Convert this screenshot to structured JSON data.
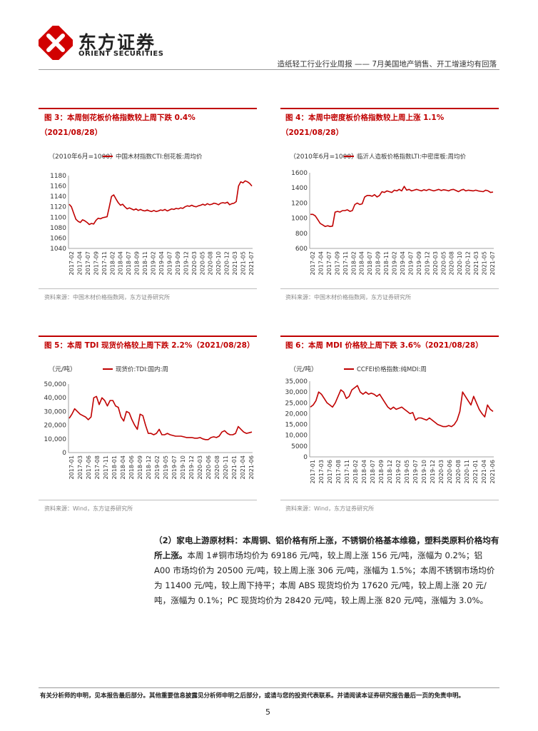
{
  "header": {
    "logo_cn": "东方证券",
    "logo_en": "ORIENT SECURITIES",
    "report_title": "造纸轻工行业行业周报 —— 7月美国地产销售、开工增速均有回落"
  },
  "colors": {
    "accent": "#c00000",
    "series": "#c00000",
    "grid": "#bdbdbd"
  },
  "figures": {
    "fig3": {
      "title": "图 3：本周刨花板价格指数较上周下跌 0.4%",
      "date": "（2021/08/28）",
      "source": "资料来源：中国木材价格指数网，东方证券研究所"
    },
    "fig4": {
      "title": "图 4：本周中密度板价格指数较上周上涨 1.1%",
      "date": "（2021/08/28）",
      "source": "资料来源：中国木材价格指数网，东方证券研究所"
    },
    "fig5": {
      "title": "图 5：本周 TDI 现货价格较上周下跌 2.2%（2021/08/28）",
      "source": "资料来源：Wind，东方证券研究所"
    },
    "fig6": {
      "title": "图 6：本周 MDI 价格较上周下跌 3.6%（2021/08/28）",
      "source": "资料来源：Wind，东方证券研究所"
    }
  },
  "chart_data": [
    {
      "id": "fig3",
      "type": "line",
      "unit_label": "（2010年6月=1000）",
      "legend": "中国木材指数CTI:刨花板:周均价",
      "ylim": [
        1040,
        1180
      ],
      "yticks": [
        1040,
        1060,
        1080,
        1100,
        1120,
        1140,
        1160,
        1180
      ],
      "xticks": [
        "2017-02",
        "2017-04",
        "2017-07",
        "2017-09",
        "2017-11",
        "2018-02",
        "2018-04",
        "2018-07",
        "2018-09",
        "2018-11",
        "2019-02",
        "2019-04",
        "2019-07",
        "2019-09",
        "2019-12",
        "2020-03",
        "2020-05",
        "2020-08",
        "2020-10",
        "2020-12",
        "2021-03",
        "2021-05",
        "2021-07"
      ],
      "values": [
        1125,
        1120,
        1108,
        1096,
        1092,
        1090,
        1095,
        1093,
        1090,
        1086,
        1088,
        1087,
        1094,
        1098,
        1097,
        1099,
        1100,
        1101,
        1120,
        1140,
        1143,
        1135,
        1128,
        1123,
        1125,
        1120,
        1116,
        1118,
        1116,
        1114,
        1116,
        1113,
        1115,
        1113,
        1112,
        1114,
        1112,
        1111,
        1113,
        1111,
        1112,
        1114,
        1113,
        1115,
        1112,
        1114,
        1116,
        1115,
        1117,
        1116,
        1118,
        1117,
        1120,
        1122,
        1121,
        1123,
        1121,
        1120,
        1122,
        1123,
        1125,
        1123,
        1126,
        1124,
        1125,
        1127,
        1126,
        1124,
        1127,
        1128,
        1127,
        1129,
        1124,
        1126,
        1127,
        1130,
        1160,
        1168,
        1166,
        1170,
        1168,
        1165,
        1160
      ]
    },
    {
      "id": "fig4",
      "type": "line",
      "unit_label": "（2010年6月=1000）",
      "legend": "临沂人造板价格指数LTI:中密度板:周均价",
      "ylim": [
        600,
        1600
      ],
      "yticks": [
        600,
        800,
        1000,
        1200,
        1400,
        1600
      ],
      "xticks": [
        "2017-02",
        "2017-04",
        "2017-07",
        "2017-09",
        "2017-11",
        "2018-02",
        "2018-04",
        "2018-07",
        "2018-09",
        "2018-11",
        "2019-02",
        "2019-04",
        "2019-07",
        "2019-09",
        "2019-12",
        "2020-03",
        "2020-05",
        "2020-08",
        "2020-10",
        "2020-12",
        "2021-03",
        "2021-05",
        "2021-07"
      ],
      "values": [
        1050,
        1050,
        1030,
        980,
        930,
        910,
        890,
        900,
        890,
        895,
        1080,
        1090,
        1080,
        1100,
        1100,
        1110,
        1090,
        1100,
        1180,
        1200,
        1180,
        1190,
        1280,
        1300,
        1300,
        1290,
        1310,
        1280,
        1300,
        1350,
        1340,
        1360,
        1350,
        1340,
        1370,
        1360,
        1380,
        1360,
        1420,
        1370,
        1380,
        1360,
        1370,
        1380,
        1370,
        1360,
        1375,
        1365,
        1380,
        1370,
        1360,
        1370,
        1380,
        1365,
        1375,
        1370,
        1360,
        1375,
        1380,
        1365,
        1350,
        1370,
        1380,
        1360,
        1370,
        1365,
        1360,
        1370,
        1360,
        1355,
        1350,
        1370,
        1360,
        1340,
        1345
      ]
    },
    {
      "id": "fig5",
      "type": "line",
      "unit_label": "（元/吨）",
      "legend": "现货价:TDI:国内:周",
      "ylim": [
        0,
        50000
      ],
      "yticks": [
        0,
        10000,
        20000,
        30000,
        40000,
        50000
      ],
      "xticks": [
        "2017-01",
        "2017-03",
        "2017-06",
        "2017-08",
        "2017-11",
        "2018-01",
        "2018-04",
        "2018-06",
        "2018-09",
        "2018-12",
        "2019-02",
        "2019-05",
        "2019-07",
        "2019-10",
        "2019-12",
        "2020-03",
        "2020-06",
        "2020-08",
        "2020-11",
        "2021-01",
        "2021-04",
        "2021-06"
      ],
      "values": [
        25000,
        28000,
        32000,
        30000,
        28000,
        27000,
        26000,
        24000,
        26000,
        40000,
        41000,
        35000,
        40000,
        38000,
        34000,
        38000,
        38000,
        34000,
        33000,
        26000,
        23000,
        30000,
        29000,
        24000,
        20000,
        17000,
        28000,
        27000,
        20000,
        14000,
        14000,
        13000,
        14000,
        17000,
        13000,
        13000,
        14000,
        13000,
        12500,
        12000,
        12000,
        12000,
        11500,
        11000,
        11000,
        11000,
        10500,
        10500,
        11000,
        10000,
        9500,
        9500,
        11000,
        11500,
        11000,
        12000,
        15000,
        16000,
        14000,
        13000,
        13000,
        14000,
        19000,
        17000,
        15000,
        14000,
        14500,
        15000
      ]
    },
    {
      "id": "fig6",
      "type": "line",
      "unit_label": "（元/吨）",
      "legend": "CCFEI价格指数:纯MDI:周",
      "ylim": [
        0,
        35000
      ],
      "yticks": [
        0,
        5000,
        10000,
        15000,
        20000,
        25000,
        30000,
        35000
      ],
      "xticks": [
        "2017-01",
        "2017-03",
        "2017-06",
        "2017-08",
        "2017-11",
        "2018-02",
        "2018-04",
        "2018-07",
        "2018-09",
        "2018-12",
        "2019-02",
        "2019-05",
        "2019-07",
        "2019-10",
        "2019-12",
        "2020-03",
        "2020-06",
        "2020-08",
        "2020-11",
        "2021-01",
        "2021-04",
        "2021-06"
      ],
      "values": [
        23000,
        24000,
        26000,
        30000,
        29000,
        27000,
        25000,
        24000,
        23000,
        25000,
        28000,
        31000,
        30000,
        27000,
        28000,
        31000,
        32000,
        33000,
        30000,
        29000,
        30000,
        29000,
        29500,
        29000,
        28000,
        29000,
        27000,
        25000,
        23000,
        22000,
        23000,
        22000,
        22500,
        23000,
        22000,
        21000,
        20000,
        20500,
        17000,
        18000,
        18000,
        17500,
        17000,
        18000,
        17000,
        16000,
        15000,
        14500,
        14000,
        14000,
        14500,
        14000,
        15000,
        17000,
        21000,
        30000,
        28000,
        26000,
        24000,
        28000,
        25000,
        22000,
        20000,
        18500,
        24000,
        22000,
        21000
      ]
    }
  ],
  "section": {
    "heading": "（2）家电上游原材料：本周铜、铝价格有所上涨，不锈钢价格基本维稳，塑料类原料价格均有所上涨。",
    "body": "本周 1#铜市场均价为 69186 元/吨，较上周上涨 156 元/吨，涨幅为 0.2%；铝 A00 市场均价为 20500 元/吨，较上周上涨 306 元/吨，涨幅为 1.5%；本周不锈钢市场均价为 11400 元/吨，较上周下持平；本周 ABS 现货均价为 17620 元/吨，较上周上涨 20 元/吨，涨幅为 0.1%；PC 现货均价为 28420 元/吨，较上周上涨 820 元/吨，涨幅为 3.0%。"
  },
  "footer": {
    "disclaimer": "有关分析师的申明，见本报告最后部分。其他重要信息披露见分析师申明之后部分，或请与您的投资代表联系。并请阅读本证券研究报告最后一页的免责申明。",
    "page": "5"
  }
}
